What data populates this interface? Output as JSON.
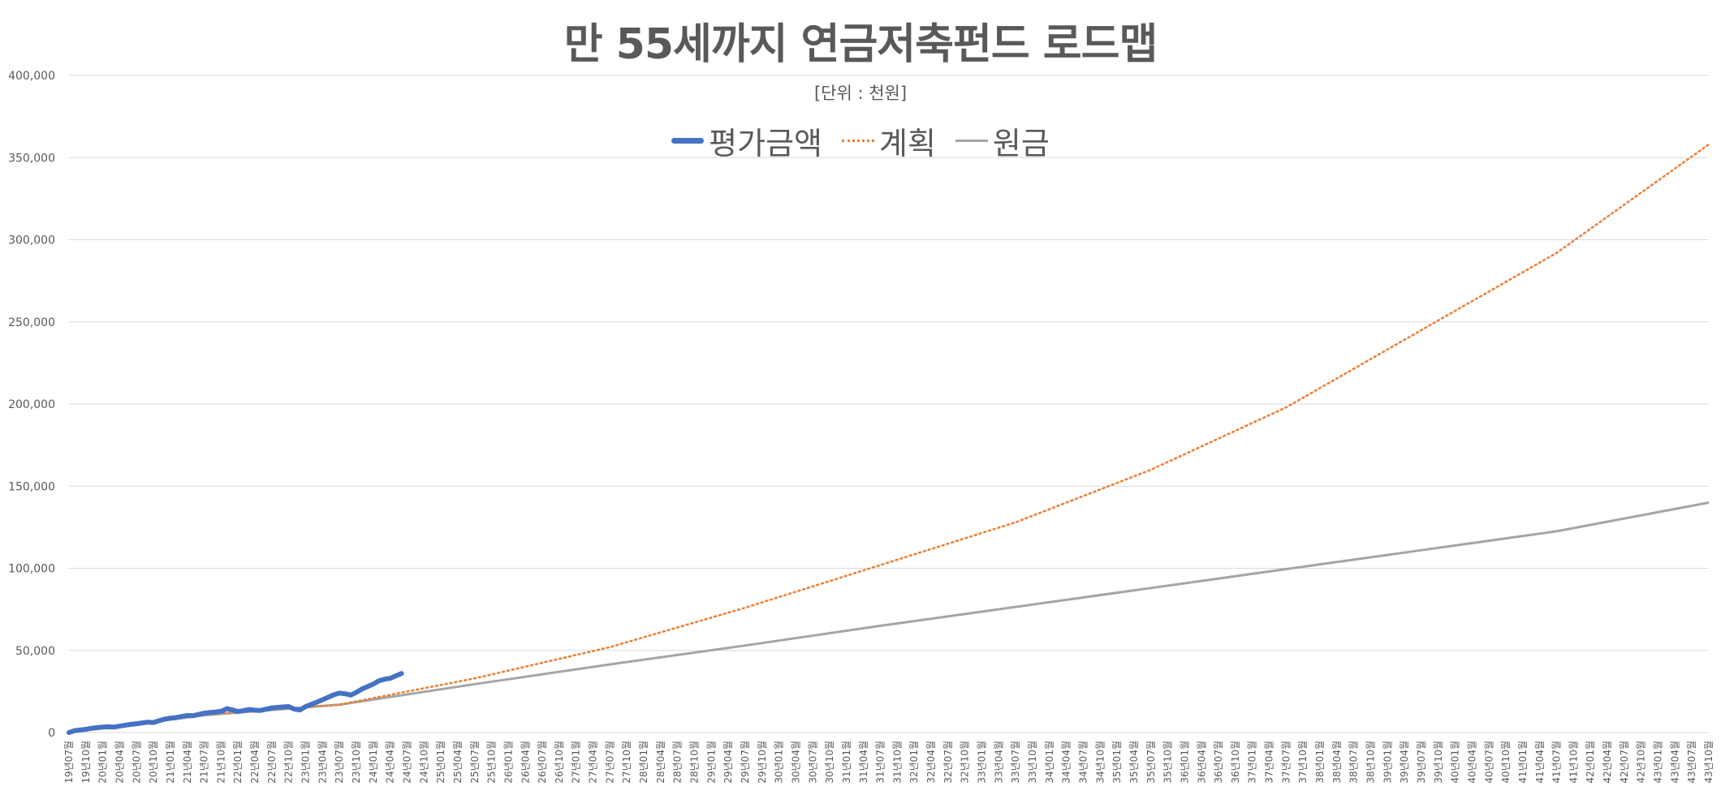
{
  "colors": {
    "evaluation": "#4472C4",
    "plan": "#ED7D31",
    "principal": "#A5A5A5",
    "grid": "#D9D9D9",
    "text": "#595959"
  },
  "chart_data": {
    "type": "line",
    "title": "만 55세까지 연금저축펀드 로드맵",
    "subtitle": "[단위 : 천원]",
    "xlabel": "",
    "ylabel": "",
    "ylim": [
      0,
      400000
    ],
    "yticks": [
      "0",
      "50,000",
      "100,000",
      "150,000",
      "200,000",
      "250,000",
      "300,000",
      "350,000",
      "400,000"
    ],
    "grid": true,
    "legend_position": "top",
    "x_start": "2019-07",
    "x_end": "2043-10",
    "x_tick_labels": [
      "19년07월",
      "19년10월",
      "20년01월",
      "20년04월",
      "20년07월",
      "20년10월",
      "21년01월",
      "21년04월",
      "21년07월",
      "21년10월",
      "22년01월",
      "22년04월",
      "22년07월",
      "22년10월",
      "23년01월",
      "23년04월",
      "23년07월",
      "23년10월",
      "24년01월",
      "24년04월",
      "24년07월",
      "24년10월",
      "25년01월",
      "25년04월",
      "25년07월",
      "25년10월",
      "26년01월",
      "26년04월",
      "26년07월",
      "26년10월",
      "27년01월",
      "27년04월",
      "27년07월",
      "27년10월",
      "28년01월",
      "28년04월",
      "28년07월",
      "28년10월",
      "29년01월",
      "29년04월",
      "29년07월",
      "29년10월",
      "30년01월",
      "30년04월",
      "30년07월",
      "30년10월",
      "31년01월",
      "31년04월",
      "31년07월",
      "31년10월",
      "32년01월",
      "32년04월",
      "32년07월",
      "32년10월",
      "33년01월",
      "33년04월",
      "33년07월",
      "33년10월",
      "34년01월",
      "34년04월",
      "34년07월",
      "34년10월",
      "35년01월",
      "35년04월",
      "35년07월",
      "35년10월",
      "36년01월",
      "36년04월",
      "36년07월",
      "36년10월",
      "37년01월",
      "37년04월",
      "37년07월",
      "37년10월",
      "38년01월",
      "38년04월",
      "38년07월",
      "38년10월",
      "39년01월",
      "39년04월",
      "39년07월",
      "39년10월",
      "40년01월",
      "40년04월",
      "40년07월",
      "40년10월",
      "41년01월",
      "41년04월",
      "41년07월",
      "41년10월",
      "42년01월",
      "42년04월",
      "42년07월",
      "42년10월",
      "43년01월",
      "43년04월",
      "43년07월",
      "43년10월"
    ],
    "series": [
      {
        "name": "평가금액",
        "style": "solid-thick",
        "x": [
          "2019-07",
          "2019-08",
          "2019-09",
          "2019-10",
          "2019-11",
          "2019-12",
          "2020-01",
          "2020-02",
          "2020-03",
          "2020-04",
          "2020-05",
          "2020-06",
          "2020-07",
          "2020-08",
          "2020-09",
          "2020-10",
          "2020-11",
          "2020-12",
          "2021-01",
          "2021-02",
          "2021-03",
          "2021-04",
          "2021-05",
          "2021-06",
          "2021-07",
          "2021-08",
          "2021-09",
          "2021-10",
          "2021-11",
          "2021-12",
          "2022-01",
          "2022-02",
          "2022-03",
          "2022-04",
          "2022-05",
          "2022-06",
          "2022-07",
          "2022-08",
          "2022-09",
          "2022-10",
          "2022-11",
          "2022-12",
          "2023-01",
          "2023-02",
          "2023-03",
          "2023-04",
          "2023-05",
          "2023-06",
          "2023-07",
          "2023-08",
          "2023-09",
          "2023-10",
          "2023-11",
          "2023-12",
          "2024-01",
          "2024-02",
          "2024-03",
          "2024-04",
          "2024-05",
          "2024-06"
        ],
        "values": [
          0,
          1200,
          1600,
          2000,
          2600,
          3000,
          3300,
          3500,
          3300,
          3900,
          4500,
          5000,
          5400,
          5900,
          6300,
          6100,
          7200,
          8200,
          8800,
          9100,
          9800,
          10400,
          10200,
          11000,
          11800,
          12200,
          12500,
          13000,
          14500,
          13800,
          12800,
          13400,
          14000,
          13600,
          13500,
          14200,
          15000,
          15300,
          15600,
          15800,
          14200,
          13800,
          15800,
          17200,
          18500,
          20000,
          21500,
          23000,
          24000,
          23600,
          22800,
          24500,
          26500,
          28000,
          29500,
          31500,
          32500,
          33000,
          34500,
          36000
        ]
      },
      {
        "name": "계획",
        "style": "dotted",
        "x": [
          "2019-07",
          "2021-07",
          "2023-07",
          "2025-07",
          "2027-07",
          "2029-07",
          "2031-07",
          "2033-07",
          "2035-07",
          "2037-07",
          "2039-07",
          "2041-07",
          "2043-10"
        ],
        "values": [
          0,
          11000,
          17000,
          33000,
          52000,
          76000,
          102000,
          128000,
          160000,
          198000,
          245000,
          292000,
          358000
        ]
      },
      {
        "name": "원금",
        "style": "solid-thin",
        "x": [
          "2019-07",
          "2021-07",
          "2023-07",
          "2025-07",
          "2027-07",
          "2029-07",
          "2031-07",
          "2033-07",
          "2035-07",
          "2037-07",
          "2039-07",
          "2041-07",
          "2043-10"
        ],
        "values": [
          0,
          10500,
          17000,
          29500,
          41500,
          53000,
          65000,
          76500,
          88000,
          99500,
          111000,
          122500,
          140000
        ]
      }
    ]
  }
}
